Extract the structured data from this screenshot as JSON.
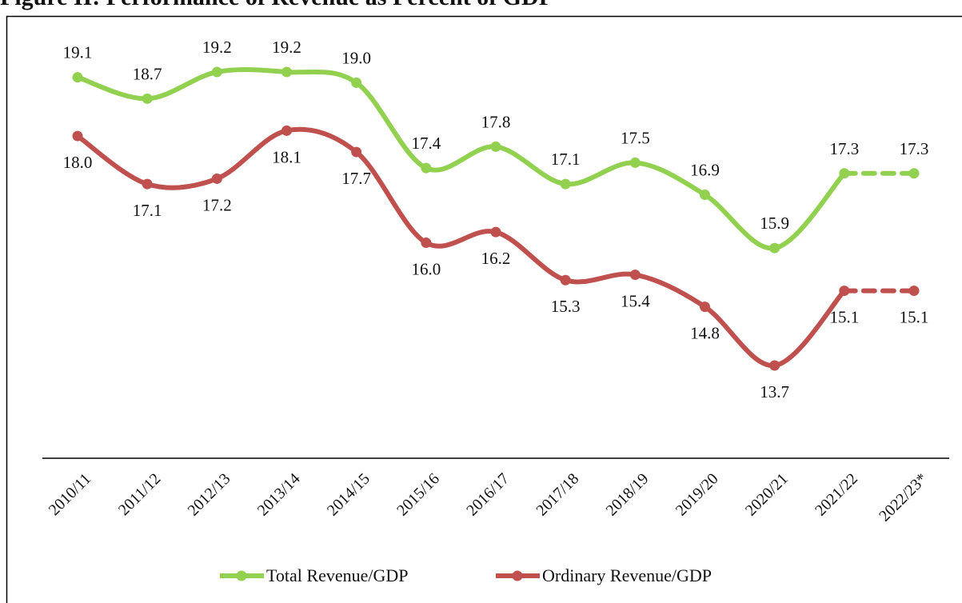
{
  "chart_data": {
    "type": "line",
    "title": "Figure II: Performance of Revenue as Percent of GDP",
    "categories": [
      "2010/11",
      "2011/12",
      "2012/13",
      "2013/14",
      "2014/15",
      "2015/16",
      "2016/17",
      "2017/18",
      "2018/19",
      "2019/20",
      "2020/21",
      "2021/22",
      "2022/23*"
    ],
    "series": [
      {
        "name": "Total Revenue/GDP",
        "color": "#92d050",
        "values": [
          19.1,
          18.7,
          19.2,
          19.2,
          19.0,
          17.4,
          17.8,
          17.1,
          17.5,
          16.9,
          15.9,
          17.3,
          17.3
        ],
        "value_labels": [
          "19.1",
          "18.7",
          "19.2",
          "19.2",
          "19.0",
          "17.4",
          "17.8",
          "17.1",
          "17.5",
          "16.9",
          "15.9",
          "17.3",
          "17.3"
        ]
      },
      {
        "name": "Ordinary Revenue/GDP",
        "color": "#c0504d",
        "values": [
          18.0,
          17.1,
          17.2,
          18.1,
          17.7,
          16.0,
          16.2,
          15.3,
          15.4,
          14.8,
          13.7,
          15.1,
          15.1
        ],
        "value_labels": [
          "18.0",
          "17.1",
          "17.2",
          "18.1",
          "17.7",
          "16.0",
          "16.2",
          "15.3",
          "15.4",
          "14.8",
          "13.7",
          "15.1",
          "15.1"
        ]
      }
    ],
    "legend": "bottom"
  }
}
